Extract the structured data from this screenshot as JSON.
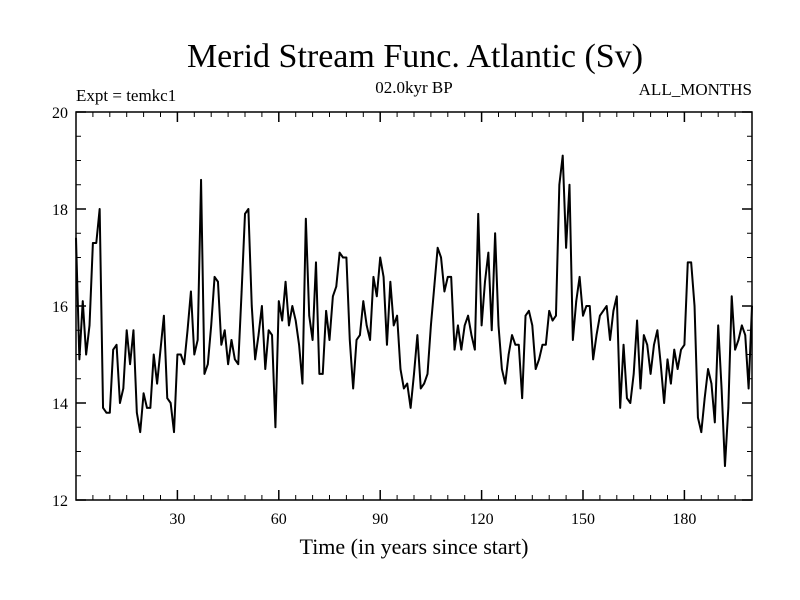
{
  "chart_data": {
    "type": "line",
    "title": "Merid Stream Func. Atlantic (Sv)",
    "left_label": "Expt = temkc1",
    "center_label": "02.0kyr BP",
    "right_label": "ALL_MONTHS",
    "xlabel": "Time (in years since start)",
    "ylabel": "",
    "xlim": [
      0,
      200
    ],
    "ylim": [
      12,
      20
    ],
    "x_ticks": [
      30,
      60,
      90,
      120,
      150,
      180
    ],
    "y_ticks": [
      12,
      14,
      16,
      18,
      20
    ],
    "grid": false,
    "series": [
      {
        "name": "Merid Stream Func. Atlantic",
        "color": "#000000",
        "values": [
          17.4,
          14.9,
          16.1,
          15.0,
          15.6,
          17.3,
          17.3,
          18.0,
          13.9,
          13.8,
          13.8,
          15.1,
          15.2,
          14.0,
          14.3,
          15.5,
          14.8,
          15.5,
          13.8,
          13.4,
          14.2,
          13.9,
          13.9,
          15.0,
          14.4,
          15.1,
          15.8,
          14.1,
          14.0,
          13.4,
          15.0,
          15.0,
          14.8,
          15.5,
          16.3,
          15.0,
          15.3,
          18.6,
          14.6,
          14.8,
          15.6,
          16.6,
          16.5,
          15.2,
          15.5,
          14.8,
          15.3,
          14.9,
          14.8,
          16.3,
          17.9,
          18.0,
          16.0,
          14.9,
          15.4,
          16.0,
          14.7,
          15.5,
          15.4,
          13.5,
          16.1,
          15.7,
          16.5,
          15.6,
          16.0,
          15.7,
          15.2,
          14.4,
          17.8,
          15.8,
          15.3,
          16.9,
          14.6,
          14.6,
          15.9,
          15.3,
          16.2,
          16.4,
          17.1,
          17.0,
          17.0,
          15.3,
          14.3,
          15.3,
          15.4,
          16.1,
          15.6,
          15.3,
          16.6,
          16.2,
          17.0,
          16.6,
          15.2,
          16.5,
          15.6,
          15.8,
          14.7,
          14.3,
          14.4,
          13.9,
          14.6,
          15.4,
          14.3,
          14.4,
          14.6,
          15.6,
          16.4,
          17.2,
          17.0,
          16.3,
          16.6,
          16.6,
          15.1,
          15.6,
          15.1,
          15.6,
          15.8,
          15.4,
          15.1,
          17.9,
          15.6,
          16.5,
          17.1,
          15.5,
          17.5,
          15.6,
          14.7,
          14.4,
          15.0,
          15.4,
          15.2,
          15.2,
          14.1,
          15.8,
          15.9,
          15.6,
          14.7,
          14.9,
          15.2,
          15.2,
          15.9,
          15.7,
          15.8,
          18.5,
          19.1,
          17.2,
          18.5,
          15.3,
          16.1,
          16.6,
          15.8,
          16.0,
          16.0,
          14.9,
          15.4,
          15.8,
          15.9,
          16.0,
          15.3,
          15.9,
          16.2,
          13.9,
          15.2,
          14.1,
          14.0,
          14.6,
          15.7,
          14.3,
          15.4,
          15.2,
          14.6,
          15.2,
          15.5,
          14.8,
          14.0,
          14.9,
          14.4,
          15.1,
          14.7,
          15.1,
          15.2,
          16.9,
          16.9,
          16.0,
          13.7,
          13.4,
          14.1,
          14.7,
          14.4,
          13.6,
          15.6,
          14.3,
          12.7,
          13.9,
          16.2,
          15.1,
          15.3,
          15.6,
          15.4,
          14.3,
          16.0
        ]
      }
    ]
  }
}
